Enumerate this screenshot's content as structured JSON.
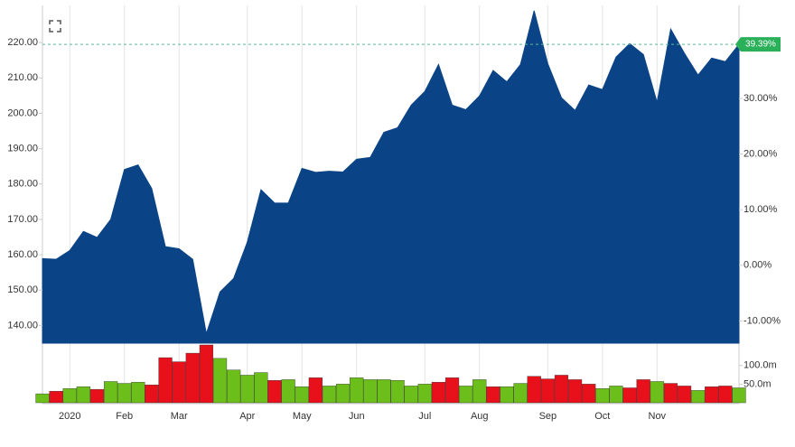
{
  "chart_data": {
    "type": "area",
    "categories": [
      null,
      null,
      "2020",
      null,
      null,
      null,
      "Feb",
      null,
      null,
      null,
      "Mar",
      null,
      null,
      null,
      null,
      "Apr",
      null,
      null,
      null,
      "May",
      null,
      null,
      null,
      "Jun",
      null,
      null,
      null,
      null,
      "Jul",
      null,
      null,
      null,
      "Aug",
      null,
      null,
      null,
      null,
      "Sep",
      null,
      null,
      null,
      "Oct",
      null,
      null,
      null,
      "Nov",
      null,
      null,
      null,
      null,
      null,
      null
    ],
    "series": [
      {
        "color": "#0b4486",
        "values": [
          158.9,
          158.7,
          161.2,
          166.6,
          164.9,
          170.0,
          184.1,
          185.4,
          178.7,
          162.3,
          161.7,
          158.7,
          137.7,
          149.5,
          153.3,
          163.6,
          178.4,
          174.6,
          174.6,
          184.4,
          183.3,
          183.6,
          183.4,
          187.0,
          187.5,
          194.6,
          195.9,
          202.3,
          206.2,
          213.8,
          202.3,
          201.0,
          204.9,
          212.1,
          208.9,
          213.8,
          229.0,
          214.0,
          204.4,
          200.8,
          208.0,
          206.7,
          215.9,
          219.7,
          216.6,
          203.1,
          223.8,
          217.0,
          210.8,
          215.6,
          214.6,
          219.5
        ]
      }
    ],
    "ylim": [
      135,
      230.5
    ],
    "yticks": [
      {
        "value": 140,
        "label": "140.00"
      },
      {
        "value": 150,
        "label": "150.00"
      },
      {
        "value": 160,
        "label": "160.00"
      },
      {
        "value": 170,
        "label": "170.00"
      },
      {
        "value": 180,
        "label": "180.00"
      },
      {
        "value": 190,
        "label": "190.00"
      },
      {
        "value": 200,
        "label": "200.00"
      },
      {
        "value": 210,
        "label": "210.00"
      },
      {
        "value": 220,
        "label": "220.00"
      }
    ],
    "y2lim": [
      -14,
      46.7
    ],
    "y2ticks": [
      {
        "value": -10,
        "label": "-10.00%"
      },
      {
        "value": 0,
        "label": "0.00%"
      },
      {
        "value": 10,
        "label": "10.00%"
      },
      {
        "value": 20,
        "label": "20.00%"
      },
      {
        "value": 30,
        "label": "30.00%"
      }
    ],
    "last_label": "39.39%",
    "last_label_color": "#2bb05a",
    "volume": {
      "values": [
        24,
        31,
        38,
        43,
        36,
        57,
        52,
        55,
        48,
        121,
        110,
        133,
        155,
        119,
        88,
        74,
        81,
        60,
        62,
        43,
        67,
        45,
        50,
        67,
        62,
        62,
        60,
        45,
        50,
        55,
        67,
        45,
        62,
        43,
        43,
        52,
        71,
        64,
        74,
        62,
        50,
        38,
        45,
        40,
        62,
        57,
        52,
        45,
        33,
        43,
        45,
        40
      ],
      "colors": [
        "#6cbf1a",
        "#e8111b",
        "#6cbf1a",
        "#6cbf1a",
        "#e8111b",
        "#6cbf1a",
        "#6cbf1a",
        "#6cbf1a",
        "#e8111b",
        "#e8111b",
        "#e8111b",
        "#e8111b",
        "#e8111b",
        "#6cbf1a",
        "#6cbf1a",
        "#6cbf1a",
        "#6cbf1a",
        "#e8111b",
        "#6cbf1a",
        "#6cbf1a",
        "#e8111b",
        "#6cbf1a",
        "#6cbf1a",
        "#6cbf1a",
        "#6cbf1a",
        "#6cbf1a",
        "#6cbf1a",
        "#6cbf1a",
        "#6cbf1a",
        "#e8111b",
        "#e8111b",
        "#6cbf1a",
        "#6cbf1a",
        "#e8111b",
        "#6cbf1a",
        "#6cbf1a",
        "#e8111b",
        "#e8111b",
        "#e8111b",
        "#e8111b",
        "#e8111b",
        "#6cbf1a",
        "#6cbf1a",
        "#e8111b",
        "#e8111b",
        "#6cbf1a",
        "#e8111b",
        "#e8111b",
        "#6cbf1a",
        "#e8111b",
        "#e8111b",
        "#6cbf1a"
      ],
      "ylim": [
        0,
        155
      ],
      "yticks": [
        {
          "value": 50,
          "label": "50.0m"
        },
        {
          "value": 100,
          "label": "100.0m"
        }
      ]
    },
    "grid": true
  }
}
